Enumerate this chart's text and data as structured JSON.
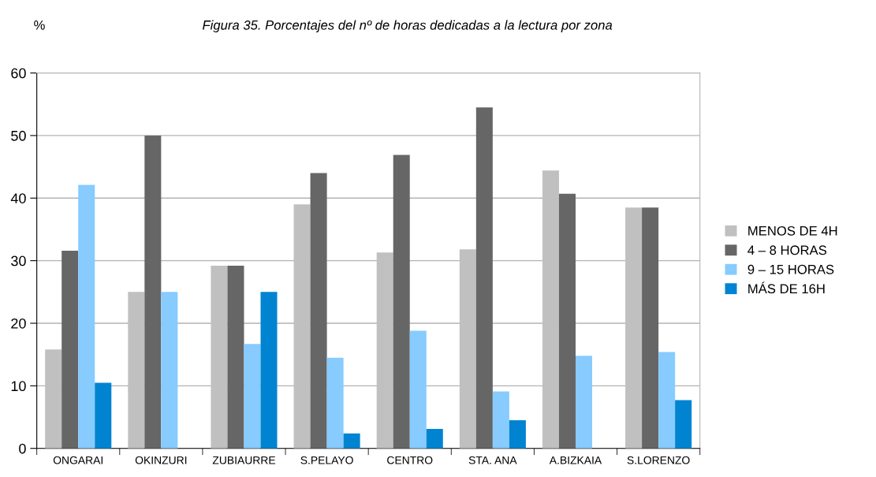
{
  "chart_data": {
    "type": "bar",
    "title": "Figura 35. Porcentajes del nº de horas dedicadas a la lectura por zona",
    "ylabel": "%",
    "categories": [
      "ONGARAI",
      "OKINZURI",
      "ZUBIAURRE",
      "S.PELAYO",
      "CENTRO",
      "STA. ANA",
      "A.BIZKAIA",
      "S.LORENZO"
    ],
    "series": [
      {
        "name": "MENOS DE 4H",
        "color": "#c0c0c0",
        "values": [
          15.8,
          25,
          29.2,
          39,
          31.3,
          31.8,
          44.4,
          38.5
        ]
      },
      {
        "name": "4 – 8 HORAS",
        "color": "#666666",
        "values": [
          31.6,
          50,
          29.2,
          44,
          46.9,
          54.5,
          40.7,
          38.5
        ]
      },
      {
        "name": "9 – 15 HORAS",
        "color": "#87cbff",
        "values": [
          42.1,
          25,
          16.7,
          14.5,
          18.8,
          9.1,
          14.8,
          15.4
        ]
      },
      {
        "name": "MÁS DE 16H",
        "color": "#0084d1",
        "values": [
          10.5,
          0,
          25,
          2.4,
          3.1,
          4.5,
          0,
          7.7
        ]
      }
    ],
    "ylim": [
      0,
      60
    ],
    "yticks": [
      0,
      10,
      20,
      30,
      40,
      50,
      60
    ],
    "grid": "y",
    "legend": "right"
  }
}
